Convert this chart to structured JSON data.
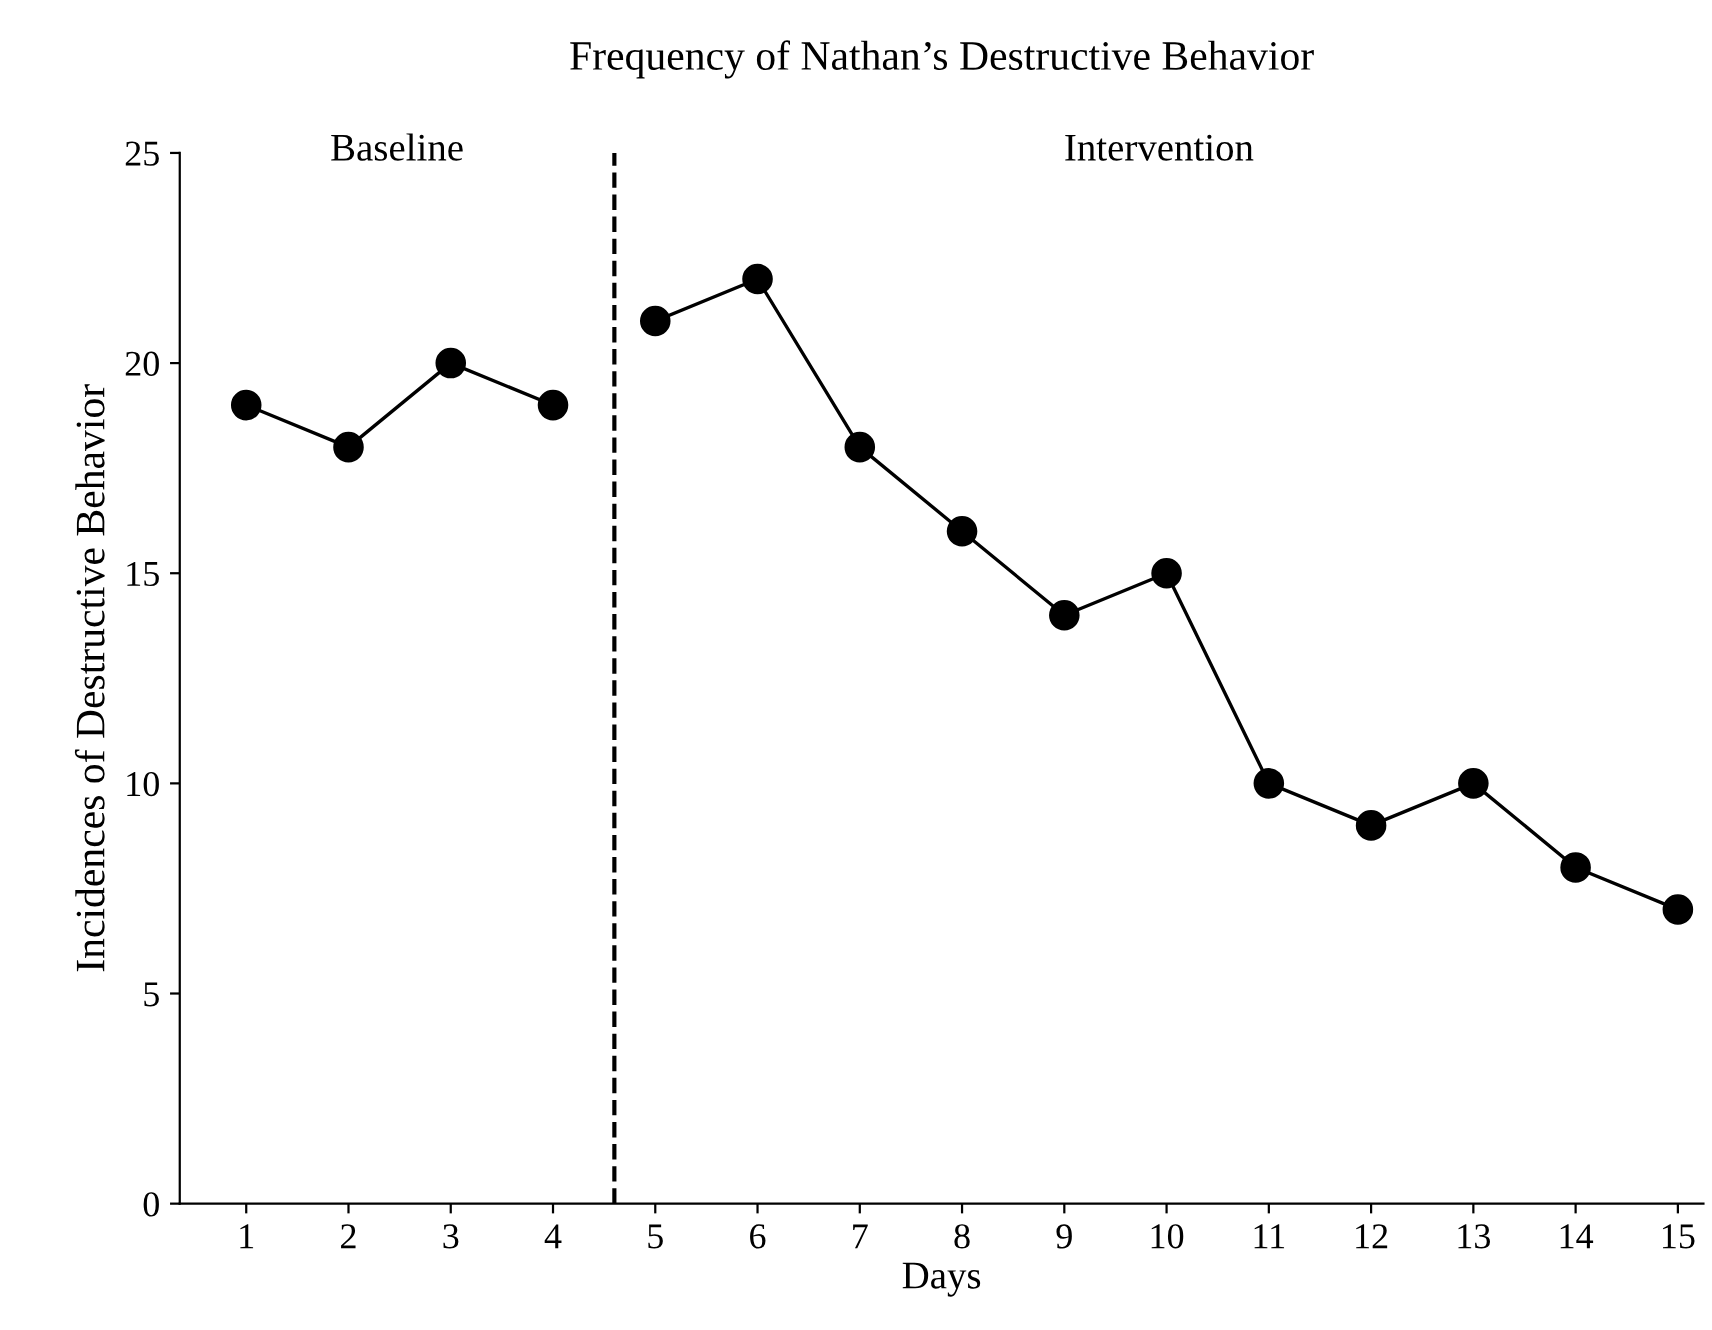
{
  "chart_data": {
    "type": "line",
    "title": "Frequency of Nathan’s Destructive Behavior",
    "xlabel": "Days",
    "ylabel": "Incidences of Destructive Behavior",
    "series": [
      {
        "color": "#000000",
        "x": [
          1,
          2,
          3,
          4
        ],
        "values": [
          19,
          18,
          20,
          19
        ]
      },
      {
        "color": "#000000",
        "x": [
          5,
          6,
          7,
          8,
          9,
          10,
          11,
          12,
          13,
          14,
          15
        ],
        "values": [
          21,
          22,
          18,
          16,
          14,
          15,
          10,
          9,
          10,
          8,
          7
        ]
      }
    ],
    "xlim": [
      0.35,
      15.25
    ],
    "xticks": [
      1,
      2,
      3,
      4,
      5,
      6,
      7,
      8,
      9,
      10,
      11,
      12,
      13,
      14,
      15
    ],
    "ylim": [
      0,
      25
    ],
    "yticks": [
      0,
      5,
      10,
      15,
      20,
      25
    ],
    "ref_lines": [
      {
        "axis": "x",
        "value": 4.6,
        "color": "#000000",
        "line_style": "dashed"
      }
    ],
    "annotations": [
      "Baseline",
      "Intervention"
    ],
    "marker": "circle",
    "line_style": "solid",
    "grid": false,
    "legend": false
  }
}
